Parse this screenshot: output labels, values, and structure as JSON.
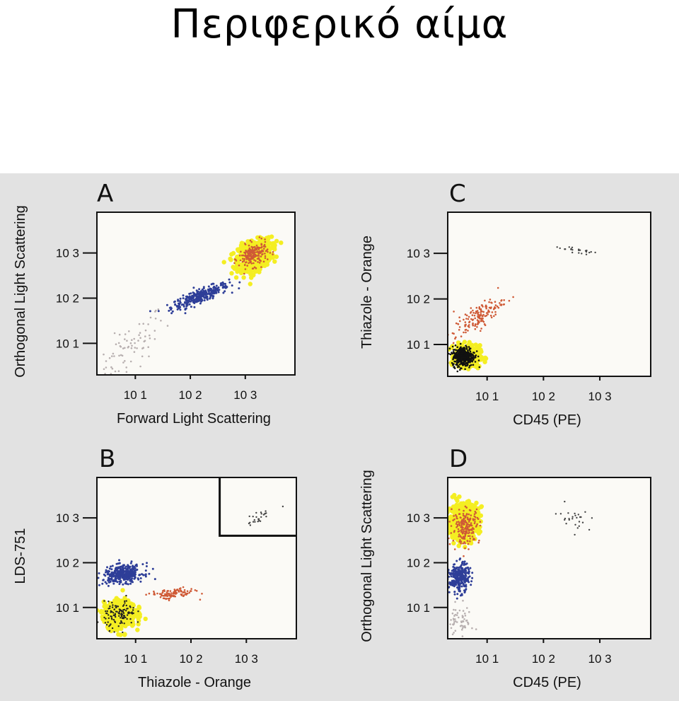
{
  "page": {
    "title": "Περιφερικό αίμα"
  },
  "chart_data": [
    {
      "type": "scatter",
      "panel": "A",
      "xlabel": "Forward Light Scattering",
      "ylabel": "Orthogonal Light Scattering",
      "xscale": "log",
      "yscale": "log",
      "xlim": [
        2,
        8000
      ],
      "ylim": [
        2,
        8000
      ],
      "xticks": [
        {
          "value": 10,
          "label": "10 1"
        },
        {
          "value": 100,
          "label": "10 2"
        },
        {
          "value": 1000,
          "label": "10 3"
        }
      ],
      "yticks": [
        {
          "value": 10,
          "label": "10 1"
        },
        {
          "value": 100,
          "label": "10 2"
        },
        {
          "value": 1000,
          "label": "10 3"
        }
      ],
      "populations": [
        {
          "color": "#b8b0b0",
          "count": 90,
          "cx": 7,
          "cy": 6,
          "spread": [
            0.35,
            0.45
          ],
          "corr": 0.8,
          "r": 1.3
        },
        {
          "color": "#2e3e98",
          "count": 320,
          "cx": 150,
          "cy": 110,
          "spread": [
            0.26,
            0.14
          ],
          "corr": 0.85,
          "r": 1.5
        },
        {
          "color": "#f4ee22",
          "count": 700,
          "cx": 1500,
          "cy": 900,
          "spread": [
            0.15,
            0.16
          ],
          "corr": 0.3,
          "r": 3.2
        },
        {
          "color": "#cf5a36",
          "count": 200,
          "cx": 1400,
          "cy": 900,
          "spread": [
            0.13,
            0.13
          ],
          "corr": 0.3,
          "r": 1.3
        }
      ]
    },
    {
      "type": "scatter",
      "panel": "C",
      "xlabel": "CD45 (PE)",
      "ylabel": "Thiazole - Orange",
      "xscale": "log",
      "yscale": "log",
      "xlim": [
        2,
        8000
      ],
      "ylim": [
        2,
        8000
      ],
      "xticks": [
        {
          "value": 10,
          "label": "10 1"
        },
        {
          "value": 100,
          "label": "10 2"
        },
        {
          "value": 1000,
          "label": "10 3"
        }
      ],
      "yticks": [
        {
          "value": 10,
          "label": "10 1"
        },
        {
          "value": 100,
          "label": "10 2"
        },
        {
          "value": 1000,
          "label": "10 3"
        }
      ],
      "populations": [
        {
          "color": "#f4ee22",
          "count": 320,
          "cx": 4.5,
          "cy": 5.5,
          "spread": [
            0.11,
            0.12
          ],
          "corr": 0.0,
          "r": 3.2
        },
        {
          "color": "#111111",
          "count": 380,
          "cx": 3.8,
          "cy": 5.5,
          "spread": [
            0.1,
            0.11
          ],
          "corr": 0.0,
          "r": 1.3
        },
        {
          "color": "#cf5a36",
          "count": 150,
          "cx": 7,
          "cy": 40,
          "spread": [
            0.22,
            0.22
          ],
          "corr": 0.8,
          "r": 1.3
        },
        {
          "color": "#444444",
          "count": 22,
          "cx": 400,
          "cy": 1150,
          "spread": [
            0.18,
            0.06
          ],
          "corr": -0.6,
          "r": 1.2
        }
      ]
    },
    {
      "type": "scatter",
      "panel": "B",
      "xlabel": "Thiazole - Orange",
      "ylabel": "LDS-751",
      "xscale": "log",
      "yscale": "log",
      "xlim": [
        2,
        8000
      ],
      "ylim": [
        2,
        8000
      ],
      "xticks": [
        {
          "value": 10,
          "label": "10 1"
        },
        {
          "value": 100,
          "label": "10 2"
        },
        {
          "value": 1000,
          "label": "10 3"
        }
      ],
      "yticks": [
        {
          "value": 10,
          "label": "10 1"
        },
        {
          "value": 100,
          "label": "10 2"
        },
        {
          "value": 1000,
          "label": "10 3"
        }
      ],
      "gate": {
        "x_from": 330,
        "y_from": 400
      },
      "populations": [
        {
          "color": "#f4ee22",
          "count": 500,
          "cx": 5.2,
          "cy": 7,
          "spread": [
            0.14,
            0.15
          ],
          "corr": 0.1,
          "r": 3.2
        },
        {
          "color": "#222222",
          "count": 120,
          "cx": 5.2,
          "cy": 7,
          "spread": [
            0.14,
            0.15
          ],
          "corr": 0.1,
          "r": 1.2
        },
        {
          "color": "#2e3e98",
          "count": 360,
          "cx": 6,
          "cy": 55,
          "spread": [
            0.18,
            0.1
          ],
          "corr": 0.2,
          "r": 1.5
        },
        {
          "color": "#cf5a36",
          "count": 110,
          "cx": 45,
          "cy": 20,
          "spread": [
            0.2,
            0.06
          ],
          "corr": 0.3,
          "r": 1.3
        },
        {
          "color": "#444444",
          "count": 26,
          "cx": 1700,
          "cy": 1050,
          "spread": [
            0.1,
            0.1
          ],
          "corr": 0.7,
          "r": 1.2
        }
      ]
    },
    {
      "type": "scatter",
      "panel": "D",
      "xlabel": "CD45 (PE)",
      "ylabel": "Orthogonal Light Scattering",
      "xscale": "log",
      "yscale": "log",
      "xlim": [
        2,
        8000
      ],
      "ylim": [
        2,
        8000
      ],
      "xticks": [
        {
          "value": 10,
          "label": "10 1"
        },
        {
          "value": 100,
          "label": "10 2"
        },
        {
          "value": 1000,
          "label": "10 3"
        }
      ],
      "yticks": [
        {
          "value": 10,
          "label": "10 1"
        },
        {
          "value": 100,
          "label": "10 2"
        },
        {
          "value": 1000,
          "label": "10 3"
        }
      ],
      "populations": [
        {
          "color": "#b8b0b0",
          "count": 60,
          "cx": 3.3,
          "cy": 5,
          "spread": [
            0.12,
            0.2
          ],
          "corr": 0.2,
          "r": 1.3
        },
        {
          "color": "#2e3e98",
          "count": 280,
          "cx": 3.2,
          "cy": 45,
          "spread": [
            0.09,
            0.16
          ],
          "corr": 0.1,
          "r": 1.5
        },
        {
          "color": "#f4ee22",
          "count": 560,
          "cx": 3.8,
          "cy": 850,
          "spread": [
            0.13,
            0.2
          ],
          "corr": 0.1,
          "r": 3.2
        },
        {
          "color": "#cf5a36",
          "count": 200,
          "cx": 4.2,
          "cy": 650,
          "spread": [
            0.12,
            0.2
          ],
          "corr": 0.1,
          "r": 1.3
        },
        {
          "color": "#444444",
          "count": 26,
          "cx": 350,
          "cy": 1000,
          "spread": [
            0.15,
            0.12
          ],
          "corr": -0.4,
          "r": 1.2
        }
      ]
    }
  ]
}
